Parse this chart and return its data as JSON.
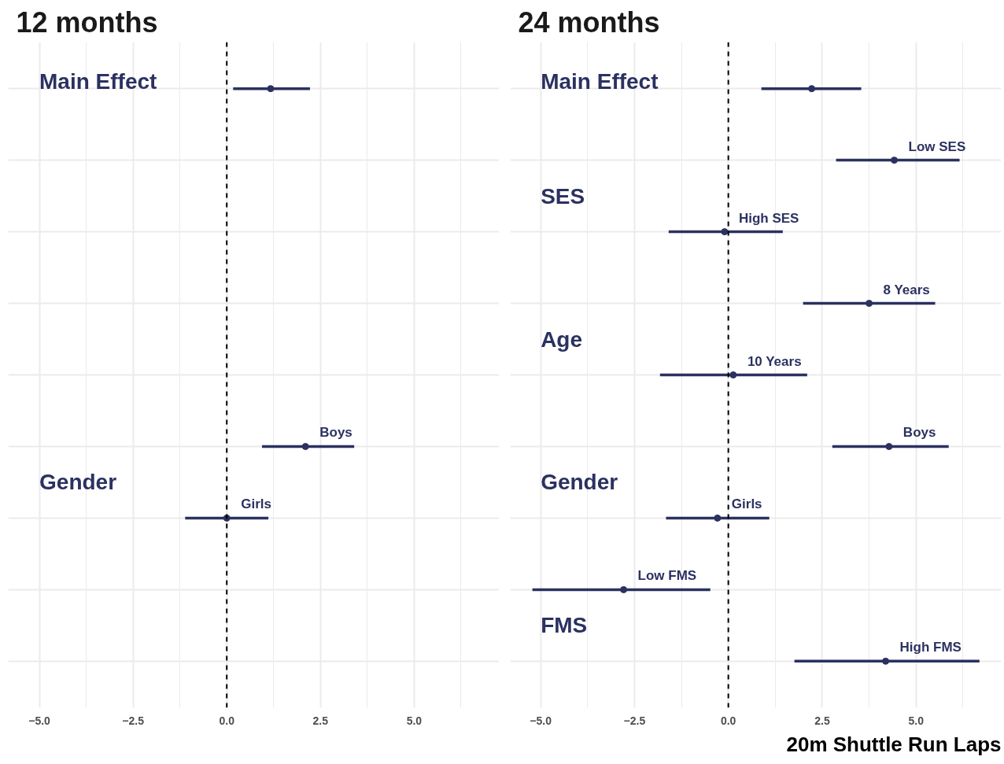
{
  "chart_data": [
    {
      "type": "scatter",
      "title": "12 months",
      "orientation": "horizontal",
      "categories": [
        null,
        null,
        null,
        null,
        null,
        null,
        null,
        null,
        null
      ],
      "annotations": [
        "Main Effect",
        "Gender"
      ],
      "series": [
        {
          "color": "#2b3160",
          "values": [
            1.17,
            null,
            null,
            null,
            null,
            null,
            null,
            null,
            null
          ],
          "errors": [
            [
              0.17,
              2.22
            ],
            null,
            null,
            null,
            null,
            null,
            null,
            null,
            null
          ]
        },
        {
          "name": "Boys",
          "color": "#2b3160",
          "values": [
            null,
            null,
            null,
            null,
            null,
            2.1,
            null,
            null,
            null
          ],
          "errors": [
            null,
            null,
            null,
            null,
            null,
            [
              0.94,
              3.4
            ],
            null,
            null,
            null
          ]
        },
        {
          "name": "Girls",
          "color": "#2b3160",
          "values": [
            null,
            null,
            null,
            null,
            null,
            null,
            0.0,
            null,
            null
          ],
          "errors": [
            null,
            null,
            null,
            null,
            null,
            null,
            [
              -1.11,
              1.11
            ],
            null,
            null
          ]
        }
      ],
      "xlim": [
        -5.83,
        7.27
      ],
      "xticks": [
        {
          "value": -5,
          "label": "−5.0"
        },
        {
          "value": -2.5,
          "label": "−2.5"
        },
        {
          "value": 0,
          "label": "0.0"
        },
        {
          "value": 2.5,
          "label": "2.5"
        },
        {
          "value": 5,
          "label": "5.0"
        }
      ],
      "ref_lines": [
        {
          "axis": "x",
          "value": 0,
          "color": "#000000",
          "line_style": "dashed"
        }
      ],
      "grid": true,
      "tick_labels": "x",
      "marker": "circle"
    },
    {
      "type": "scatter",
      "title": "24 months",
      "orientation": "horizontal",
      "xlabel": "20m Shuttle Run Laps",
      "categories": [
        null,
        null,
        null,
        null,
        null,
        null,
        null,
        null,
        null
      ],
      "annotations": [
        "Main Effect",
        "SES",
        "Age",
        "Gender",
        "FMS"
      ],
      "series": [
        {
          "color": "#2b3160",
          "values": [
            2.22,
            null,
            null,
            null,
            null,
            null,
            null,
            null,
            null
          ],
          "errors": [
            [
              0.88,
              3.54
            ],
            null,
            null,
            null,
            null,
            null,
            null,
            null,
            null
          ]
        },
        {
          "name": "Low SES",
          "color": "#2b3160",
          "values": [
            null,
            4.42,
            null,
            null,
            null,
            null,
            null,
            null,
            null
          ],
          "errors": [
            null,
            [
              2.87,
              6.16
            ],
            null,
            null,
            null,
            null,
            null,
            null,
            null
          ]
        },
        {
          "name": "High SES",
          "color": "#2b3160",
          "values": [
            null,
            null,
            -0.1,
            null,
            null,
            null,
            null,
            null,
            null
          ],
          "errors": [
            null,
            null,
            [
              -1.59,
              1.45
            ],
            null,
            null,
            null,
            null,
            null,
            null
          ]
        },
        {
          "name": "8 Years",
          "color": "#2b3160",
          "values": [
            null,
            null,
            null,
            3.75,
            null,
            null,
            null,
            null,
            null
          ],
          "errors": [
            null,
            null,
            null,
            [
              1.99,
              5.51
            ],
            null,
            null,
            null,
            null,
            null
          ]
        },
        {
          "name": "10 Years",
          "color": "#2b3160",
          "values": [
            null,
            null,
            null,
            null,
            0.13,
            null,
            null,
            null,
            null
          ],
          "errors": [
            null,
            null,
            null,
            null,
            [
              -1.82,
              2.1
            ],
            null,
            null,
            null,
            null
          ]
        },
        {
          "name": "Boys",
          "color": "#2b3160",
          "values": [
            null,
            null,
            null,
            null,
            null,
            4.28,
            null,
            null,
            null
          ],
          "errors": [
            null,
            null,
            null,
            null,
            null,
            [
              2.77,
              5.87
            ],
            null,
            null,
            null
          ]
        },
        {
          "name": "Girls",
          "color": "#2b3160",
          "values": [
            null,
            null,
            null,
            null,
            null,
            null,
            -0.29,
            null,
            null
          ],
          "errors": [
            null,
            null,
            null,
            null,
            null,
            null,
            [
              -1.66,
              1.09
            ],
            null,
            null
          ]
        },
        {
          "name": "Low FMS",
          "color": "#2b3160",
          "values": [
            null,
            null,
            null,
            null,
            null,
            null,
            null,
            -2.79,
            null
          ],
          "errors": [
            null,
            null,
            null,
            null,
            null,
            null,
            null,
            [
              -5.22,
              -0.48
            ],
            null
          ]
        },
        {
          "name": "High FMS",
          "color": "#2b3160",
          "values": [
            null,
            null,
            null,
            null,
            null,
            null,
            null,
            null,
            4.19
          ],
          "errors": [
            null,
            null,
            null,
            null,
            null,
            null,
            null,
            null,
            [
              1.76,
              6.69
            ]
          ]
        }
      ],
      "xlim": [
        -5.81,
        7.27
      ],
      "xticks": [
        {
          "value": -5,
          "label": "−5.0"
        },
        {
          "value": -2.5,
          "label": "−2.5"
        },
        {
          "value": 0,
          "label": "0.0"
        },
        {
          "value": 2.5,
          "label": "2.5"
        },
        {
          "value": 5,
          "label": "5.0"
        }
      ],
      "ref_lines": [
        {
          "axis": "x",
          "value": 0,
          "color": "#000000",
          "line_style": "dashed"
        }
      ],
      "grid": true,
      "tick_labels": "x",
      "marker": "circle"
    }
  ]
}
